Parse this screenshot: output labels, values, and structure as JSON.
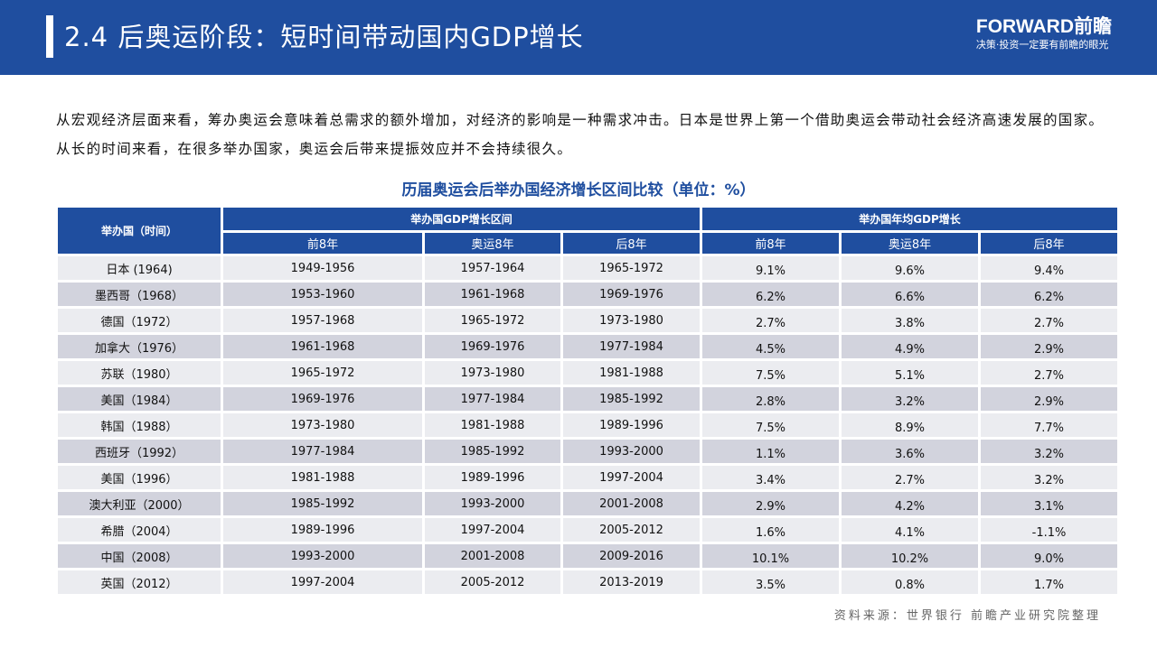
{
  "header": {
    "title": "2.4 后奥运阶段：短时间带动国内GDP增长",
    "logo_name": "FORWARD前瞻",
    "logo_slogan": "决策·投资一定要有前瞻的眼光"
  },
  "intro": "从宏观经济层面来看，筹办奥运会意味着总需求的额外增加，对经济的影响是一种需求冲击。日本是世界上第一个借助奥运会带动社会经济高速发展的国家。从长的时间来看，在很多举办国家，奥运会后带来提振效应并不会持续很久。",
  "table": {
    "title": "历届奥运会后举办国经济增长区间比较（单位：%）",
    "col_country": "举办国（时间）",
    "group1": "举办国GDP增长区间",
    "group2": "举办国年均GDP增长",
    "sub": [
      "前8年",
      "奥运8年",
      "后8年",
      "前8年",
      "奥运8年",
      "后8年"
    ],
    "rows": [
      [
        "日本 (1964)",
        "1949-1956",
        "1957-1964",
        "1965-1972",
        "9.1%",
        "9.6%",
        "9.4%"
      ],
      [
        "墨西哥（1968）",
        "1953-1960",
        "1961-1968",
        "1969-1976",
        "6.2%",
        "6.6%",
        "6.2%"
      ],
      [
        "德国（1972）",
        "1957-1968",
        "1965-1972",
        "1973-1980",
        "2.7%",
        "3.8%",
        "2.7%"
      ],
      [
        "加拿大（1976）",
        "1961-1968",
        "1969-1976",
        "1977-1984",
        "4.5%",
        "4.9%",
        "2.9%"
      ],
      [
        "苏联（1980）",
        "1965-1972",
        "1973-1980",
        "1981-1988",
        "7.5%",
        "5.1%",
        "2.7%"
      ],
      [
        "美国（1984）",
        "1969-1976",
        "1977-1984",
        "1985-1992",
        "2.8%",
        "3.2%",
        "2.9%"
      ],
      [
        "韩国（1988）",
        "1973-1980",
        "1981-1988",
        "1989-1996",
        "7.5%",
        "8.9%",
        "7.7%"
      ],
      [
        "西班牙（1992）",
        "1977-1984",
        "1985-1992",
        "1993-2000",
        "1.1%",
        "3.6%",
        "3.2%"
      ],
      [
        "美国（1996）",
        "1981-1988",
        "1989-1996",
        "1997-2004",
        "3.4%",
        "2.7%",
        "3.2%"
      ],
      [
        "澳大利亚（2000）",
        "1985-1992",
        "1993-2000",
        "2001-2008",
        "2.9%",
        "4.2%",
        "3.1%"
      ],
      [
        "希腊（2004）",
        "1989-1996",
        "1997-2004",
        "2005-2012",
        "1.6%",
        "4.1%",
        "-1.1%"
      ],
      [
        "中国（2008）",
        "1993-2000",
        "2001-2008",
        "2009-2016",
        "10.1%",
        "10.2%",
        "9.0%"
      ],
      [
        "英国（2012）",
        "1997-2004",
        "2005-2012",
        "2013-2019",
        "3.5%",
        "0.8%",
        "1.7%"
      ]
    ]
  },
  "source": "资料来源：世界银行 前瞻产业研究院整理",
  "colors": {
    "brand": "#1f4e9f",
    "row_light": "#ebecf0",
    "row_dark": "#d2d3dd"
  }
}
